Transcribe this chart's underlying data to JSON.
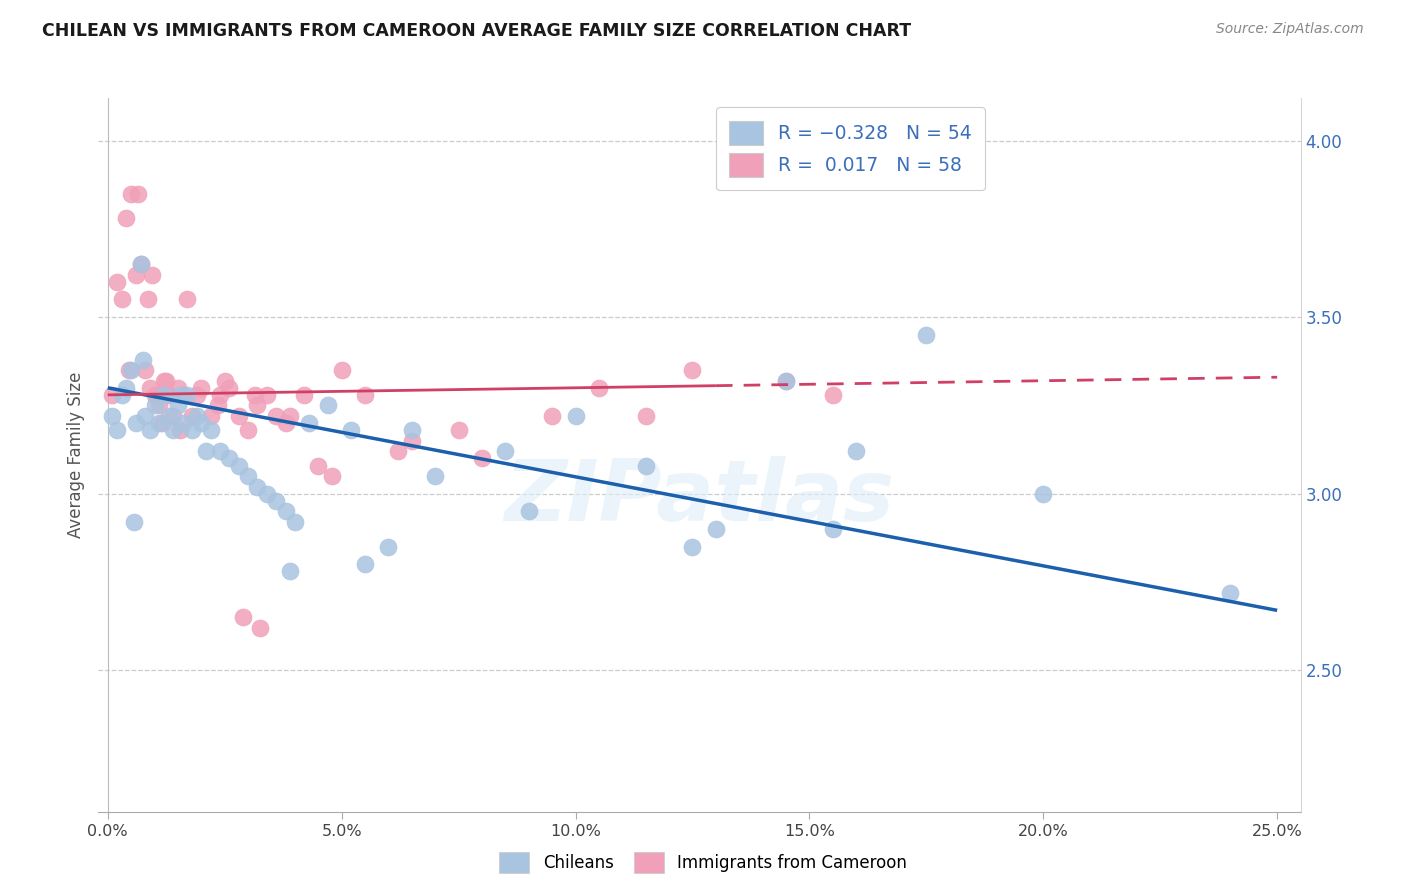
{
  "title": "CHILEAN VS IMMIGRANTS FROM CAMEROON AVERAGE FAMILY SIZE CORRELATION CHART",
  "source": "Source: ZipAtlas.com",
  "ylabel": "Average Family Size",
  "xlabel_ticks": [
    "0.0%",
    "5.0%",
    "10.0%",
    "15.0%",
    "20.0%",
    "25.0%"
  ],
  "xlabel_vals": [
    0.0,
    5.0,
    10.0,
    15.0,
    20.0,
    25.0
  ],
  "ylabel_ticks_right": [
    2.5,
    3.0,
    3.5,
    4.0
  ],
  "xlim": [
    -0.2,
    25.5
  ],
  "ylim": [
    2.1,
    4.12
  ],
  "blue_color": "#A8C4E0",
  "pink_color": "#F0A0B8",
  "blue_line_color": "#1B5FAD",
  "pink_line_color": "#D04065",
  "pink_line_solid_end": 13.0,
  "right_axis_color": "#3B6FBB",
  "title_color": "#1a1a1a",
  "source_color": "#888888",
  "blue_line_y0": 3.3,
  "blue_line_y25": 2.67,
  "pink_line_y0": 3.28,
  "pink_line_y25": 3.33,
  "blue_x": [
    0.1,
    0.2,
    0.3,
    0.4,
    0.5,
    0.6,
    0.7,
    0.8,
    0.9,
    1.0,
    1.1,
    1.2,
    1.3,
    1.4,
    1.5,
    1.6,
    1.7,
    1.8,
    1.9,
    2.0,
    2.2,
    2.4,
    2.6,
    2.8,
    3.0,
    3.2,
    3.4,
    3.6,
    3.8,
    4.0,
    4.3,
    4.7,
    5.2,
    6.0,
    7.0,
    8.5,
    10.0,
    12.5,
    14.5,
    16.0,
    17.5,
    20.0,
    13.0,
    11.5,
    9.0,
    6.5,
    2.1,
    1.55,
    0.55,
    0.75,
    3.9,
    5.5,
    24.0,
    15.5
  ],
  "blue_y": [
    3.22,
    3.18,
    3.28,
    3.3,
    3.35,
    3.2,
    3.65,
    3.22,
    3.18,
    3.25,
    3.2,
    3.28,
    3.22,
    3.18,
    3.25,
    3.2,
    3.28,
    3.18,
    3.22,
    3.2,
    3.18,
    3.12,
    3.1,
    3.08,
    3.05,
    3.02,
    3.0,
    2.98,
    2.95,
    2.92,
    3.2,
    3.25,
    3.18,
    2.85,
    3.05,
    3.12,
    3.22,
    2.85,
    3.32,
    3.12,
    3.45,
    3.0,
    2.9,
    3.08,
    2.95,
    3.18,
    3.12,
    3.28,
    2.92,
    3.38,
    2.78,
    2.8,
    2.72,
    2.9
  ],
  "pink_x": [
    0.1,
    0.2,
    0.3,
    0.4,
    0.5,
    0.6,
    0.7,
    0.8,
    0.9,
    1.0,
    1.1,
    1.2,
    1.3,
    1.4,
    1.5,
    1.6,
    1.7,
    1.8,
    1.9,
    2.0,
    2.2,
    2.4,
    2.6,
    2.8,
    3.0,
    3.2,
    3.4,
    3.6,
    3.8,
    4.2,
    4.8,
    5.5,
    6.2,
    0.45,
    1.05,
    1.25,
    0.85,
    1.55,
    2.5,
    3.9,
    5.0,
    7.5,
    10.5,
    11.5,
    14.5,
    15.5,
    9.5,
    8.0,
    6.5,
    4.5,
    3.15,
    3.25,
    2.9,
    1.15,
    0.65,
    0.95,
    2.35,
    12.5
  ],
  "pink_y": [
    3.28,
    3.6,
    3.55,
    3.78,
    3.85,
    3.62,
    3.65,
    3.35,
    3.3,
    3.28,
    3.25,
    3.32,
    3.28,
    3.22,
    3.3,
    3.28,
    3.55,
    3.22,
    3.28,
    3.3,
    3.22,
    3.28,
    3.3,
    3.22,
    3.18,
    3.25,
    3.28,
    3.22,
    3.2,
    3.28,
    3.05,
    3.28,
    3.12,
    3.35,
    3.28,
    3.32,
    3.55,
    3.18,
    3.32,
    3.22,
    3.35,
    3.18,
    3.3,
    3.22,
    3.32,
    3.28,
    3.22,
    3.1,
    3.15,
    3.08,
    3.28,
    2.62,
    2.65,
    3.2,
    3.85,
    3.62,
    3.25,
    3.35
  ]
}
